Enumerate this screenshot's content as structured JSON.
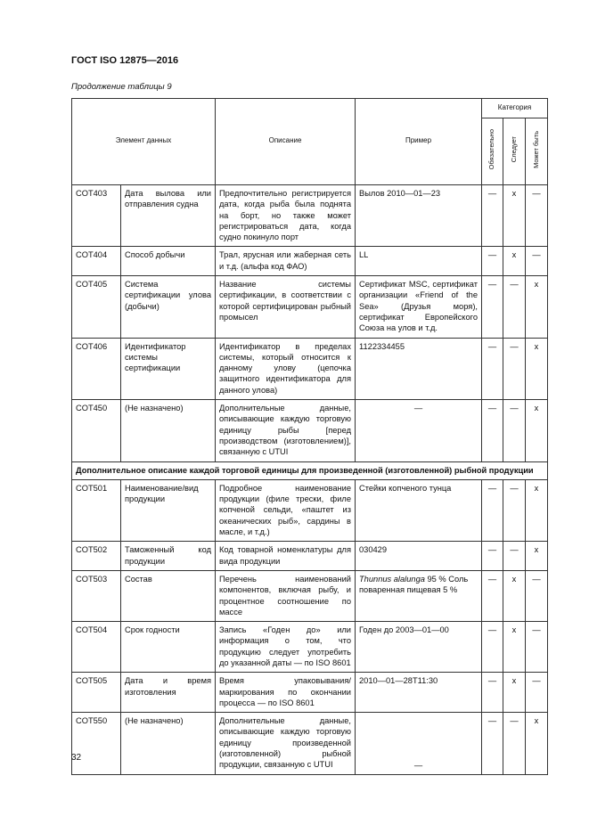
{
  "header": {
    "title": "ГОСТ ISO 12875—2016"
  },
  "caption": "Продолжение таблицы 9",
  "table": {
    "columns": [
      "Элемент данных",
      "Описание",
      "Пример"
    ],
    "category_header": "Категория",
    "category_columns": [
      "Обязательно",
      "Следует",
      "Может быть"
    ],
    "rows": [
      [
        "COT403",
        "Дата вылова или отправления судна",
        "Предпочтительно регистрируется дата, когда рыба была поднята на борт, но также может регистрироваться дата, когда судно покинуло порт",
        "Вылов 2010—01—23",
        "—",
        "x",
        "—"
      ],
      [
        "COT404",
        "Способ добычи",
        "Трал, ярусная или жаберная сеть и т.д. (альфа код ФАО)",
        "LL",
        "—",
        "x",
        "—"
      ],
      [
        "COT405",
        "Система сертификации улова (добычи)",
        "Название системы сертификации, в соответствии с которой сертифицирован рыбный промысел",
        "Сертификат MSC, сертификат организации «Friend of the Sea» (Друзья моря), сертификат Европейского Союза на улов и т.д.",
        "—",
        "—",
        "x"
      ],
      [
        "COT406",
        "Идентификатор системы сертификации",
        "Идентификатор в пределах системы, который относится к данному улову (цепочка защитного идентификатора для данного улова)",
        "1122334455",
        "—",
        "—",
        "x"
      ],
      [
        "COT450",
        "(Не назначено)",
        "Дополнительные данные, описывающие каждую торговую единицу рыбы [перед производством (изготовлением)], связанную с UTUI",
        "—",
        "—",
        "—",
        "x"
      ]
    ],
    "section": "Дополнительное описание каждой торговой единицы для произведенной (изготовленной) рыбной продукции",
    "rows2": [
      [
        "COT501",
        "Наименование/вид продукции",
        "Подробное наименование продукции (филе трески, филе копченой сельди, «паштет из океанических рыб», сардины в масле, и т.д.)",
        "Стейки копченого тунца",
        "—",
        "—",
        "x"
      ],
      [
        "COT502",
        "Таможенный код продукции",
        "Код товарной номенклатуры для вида продукции",
        "030429",
        "—",
        "—",
        "x"
      ],
      [
        "COT503",
        "Состав",
        "Перечень наименований компонентов, включая рыбу, и процентное соотношение по массе",
        [
          "Thunnus alalunga",
          " 95 % Соль поваренная пищевая 5 %"
        ],
        "—",
        "x",
        "—"
      ],
      [
        "COT504",
        "Срок годности",
        "Запись «Годен до» или информация о том, что продукцию следует употребить до указанной даты — по ISO 8601",
        "Годен до 2003—01—00",
        "—",
        "x",
        "—"
      ],
      [
        "COT505",
        "Дата и время изготовления",
        "Время упаковывания/маркирования по окончании процесса — по ISO 8601",
        "2010—01—28T11:30",
        "—",
        "x",
        "—"
      ],
      [
        "COT550",
        "(Не назначено)",
        "Дополнительные данные, описывающие каждую торговую единицу произведенной (изготовленной) рыбной продукции, связанную с UTUI",
        "—",
        "—",
        "—",
        "x"
      ]
    ]
  },
  "page_number": "32"
}
